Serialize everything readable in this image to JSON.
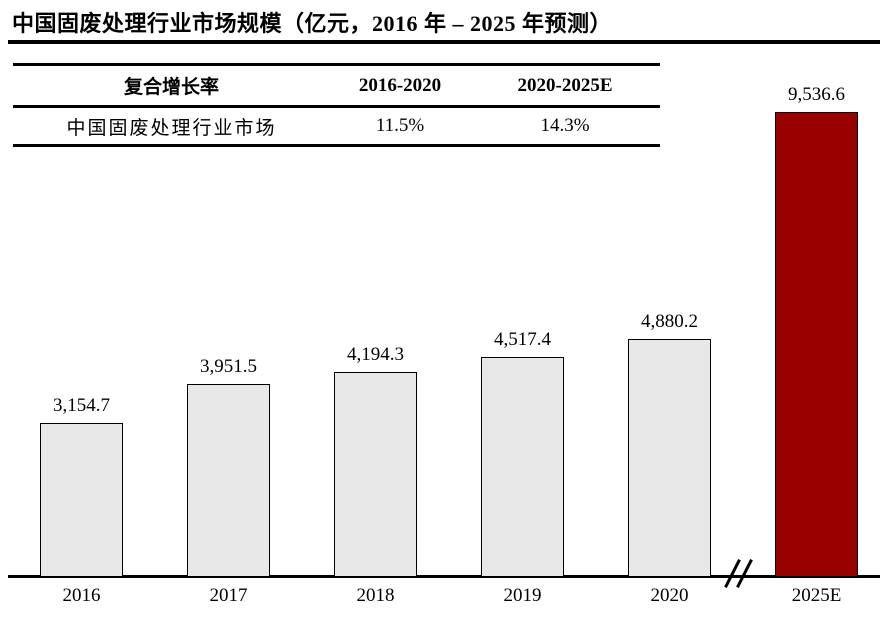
{
  "title": "中国固废处理行业市场规模（亿元，2016 年 – 2025 年预测）",
  "table": {
    "header": [
      "复合增长率",
      "2016-2020",
      "2020-2025E"
    ],
    "rows": [
      [
        "中国固废处理行业市场",
        "11.5%",
        "14.3%"
      ]
    ]
  },
  "chart_data": {
    "type": "bar",
    "title": "中国固废处理行业市场规模（亿元，2016 年 – 2025 年预测）",
    "categories": [
      "2016",
      "2017",
      "2018",
      "2019",
      "2020",
      "2025E"
    ],
    "values": [
      3154.7,
      3951.5,
      4194.3,
      4517.4,
      4880.2,
      9536.6
    ],
    "labels": [
      "3,154.7",
      "3,951.5",
      "4,194.3",
      "4,517.4",
      "4,880.2",
      "9,536.6"
    ],
    "unit": "亿元",
    "xlabel": "",
    "ylabel": "",
    "ylim": [
      0,
      10000
    ],
    "grid": false,
    "legend": "none",
    "bar_color": "#E8E8E8",
    "bar_border_color": "#000000",
    "highlight_index": 5,
    "highlight_color": "#990000",
    "axis_break": {
      "between": [
        "2020",
        "2025E"
      ]
    },
    "cagr_2016_2020": "11.5%",
    "cagr_2020_2025E": "14.3%"
  }
}
